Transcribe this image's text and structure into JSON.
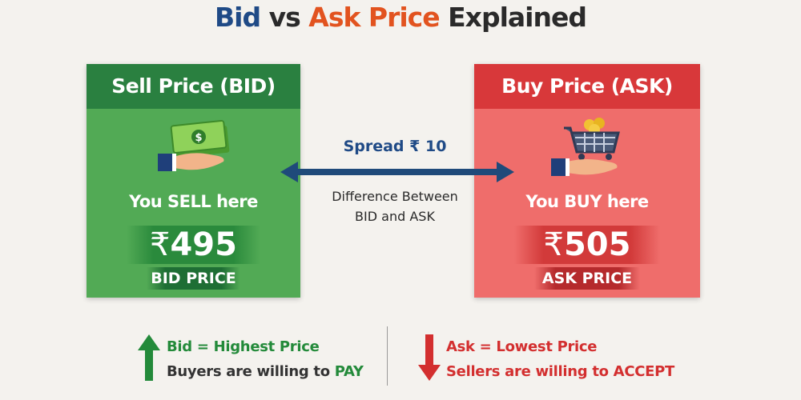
{
  "title": {
    "bid": "Bid",
    "vs": "vs",
    "ask": "Ask Price",
    "explained": "Explained"
  },
  "bid_panel": {
    "header": "Sell Price (BID)",
    "caption": "You SELL here",
    "currency": "₹",
    "price": "495",
    "label": "BID PRICE",
    "icon": "cash-in-hand-icon",
    "color": "#2e8b3e"
  },
  "ask_panel": {
    "header": "Buy Price (ASK)",
    "caption": "You BUY here",
    "currency": "₹",
    "price": "505",
    "label": "ASK PRICE",
    "icon": "cart-in-hand-icon",
    "color": "#d93636"
  },
  "spread": {
    "label": "Spread ₹ 10",
    "line1": "Difference Between",
    "line2": "BID and ASK",
    "icon": "double-arrow-icon"
  },
  "footer": {
    "bid": {
      "line1": "Bid = Highest Price",
      "line2_prefix": "Buyers are willing to ",
      "line2_emph": "PAY",
      "icon": "arrow-up-icon"
    },
    "ask": {
      "line1": "Ask = Lowest Price",
      "line2": "Sellers are willing to ACCEPT",
      "icon": "arrow-down-icon"
    }
  }
}
